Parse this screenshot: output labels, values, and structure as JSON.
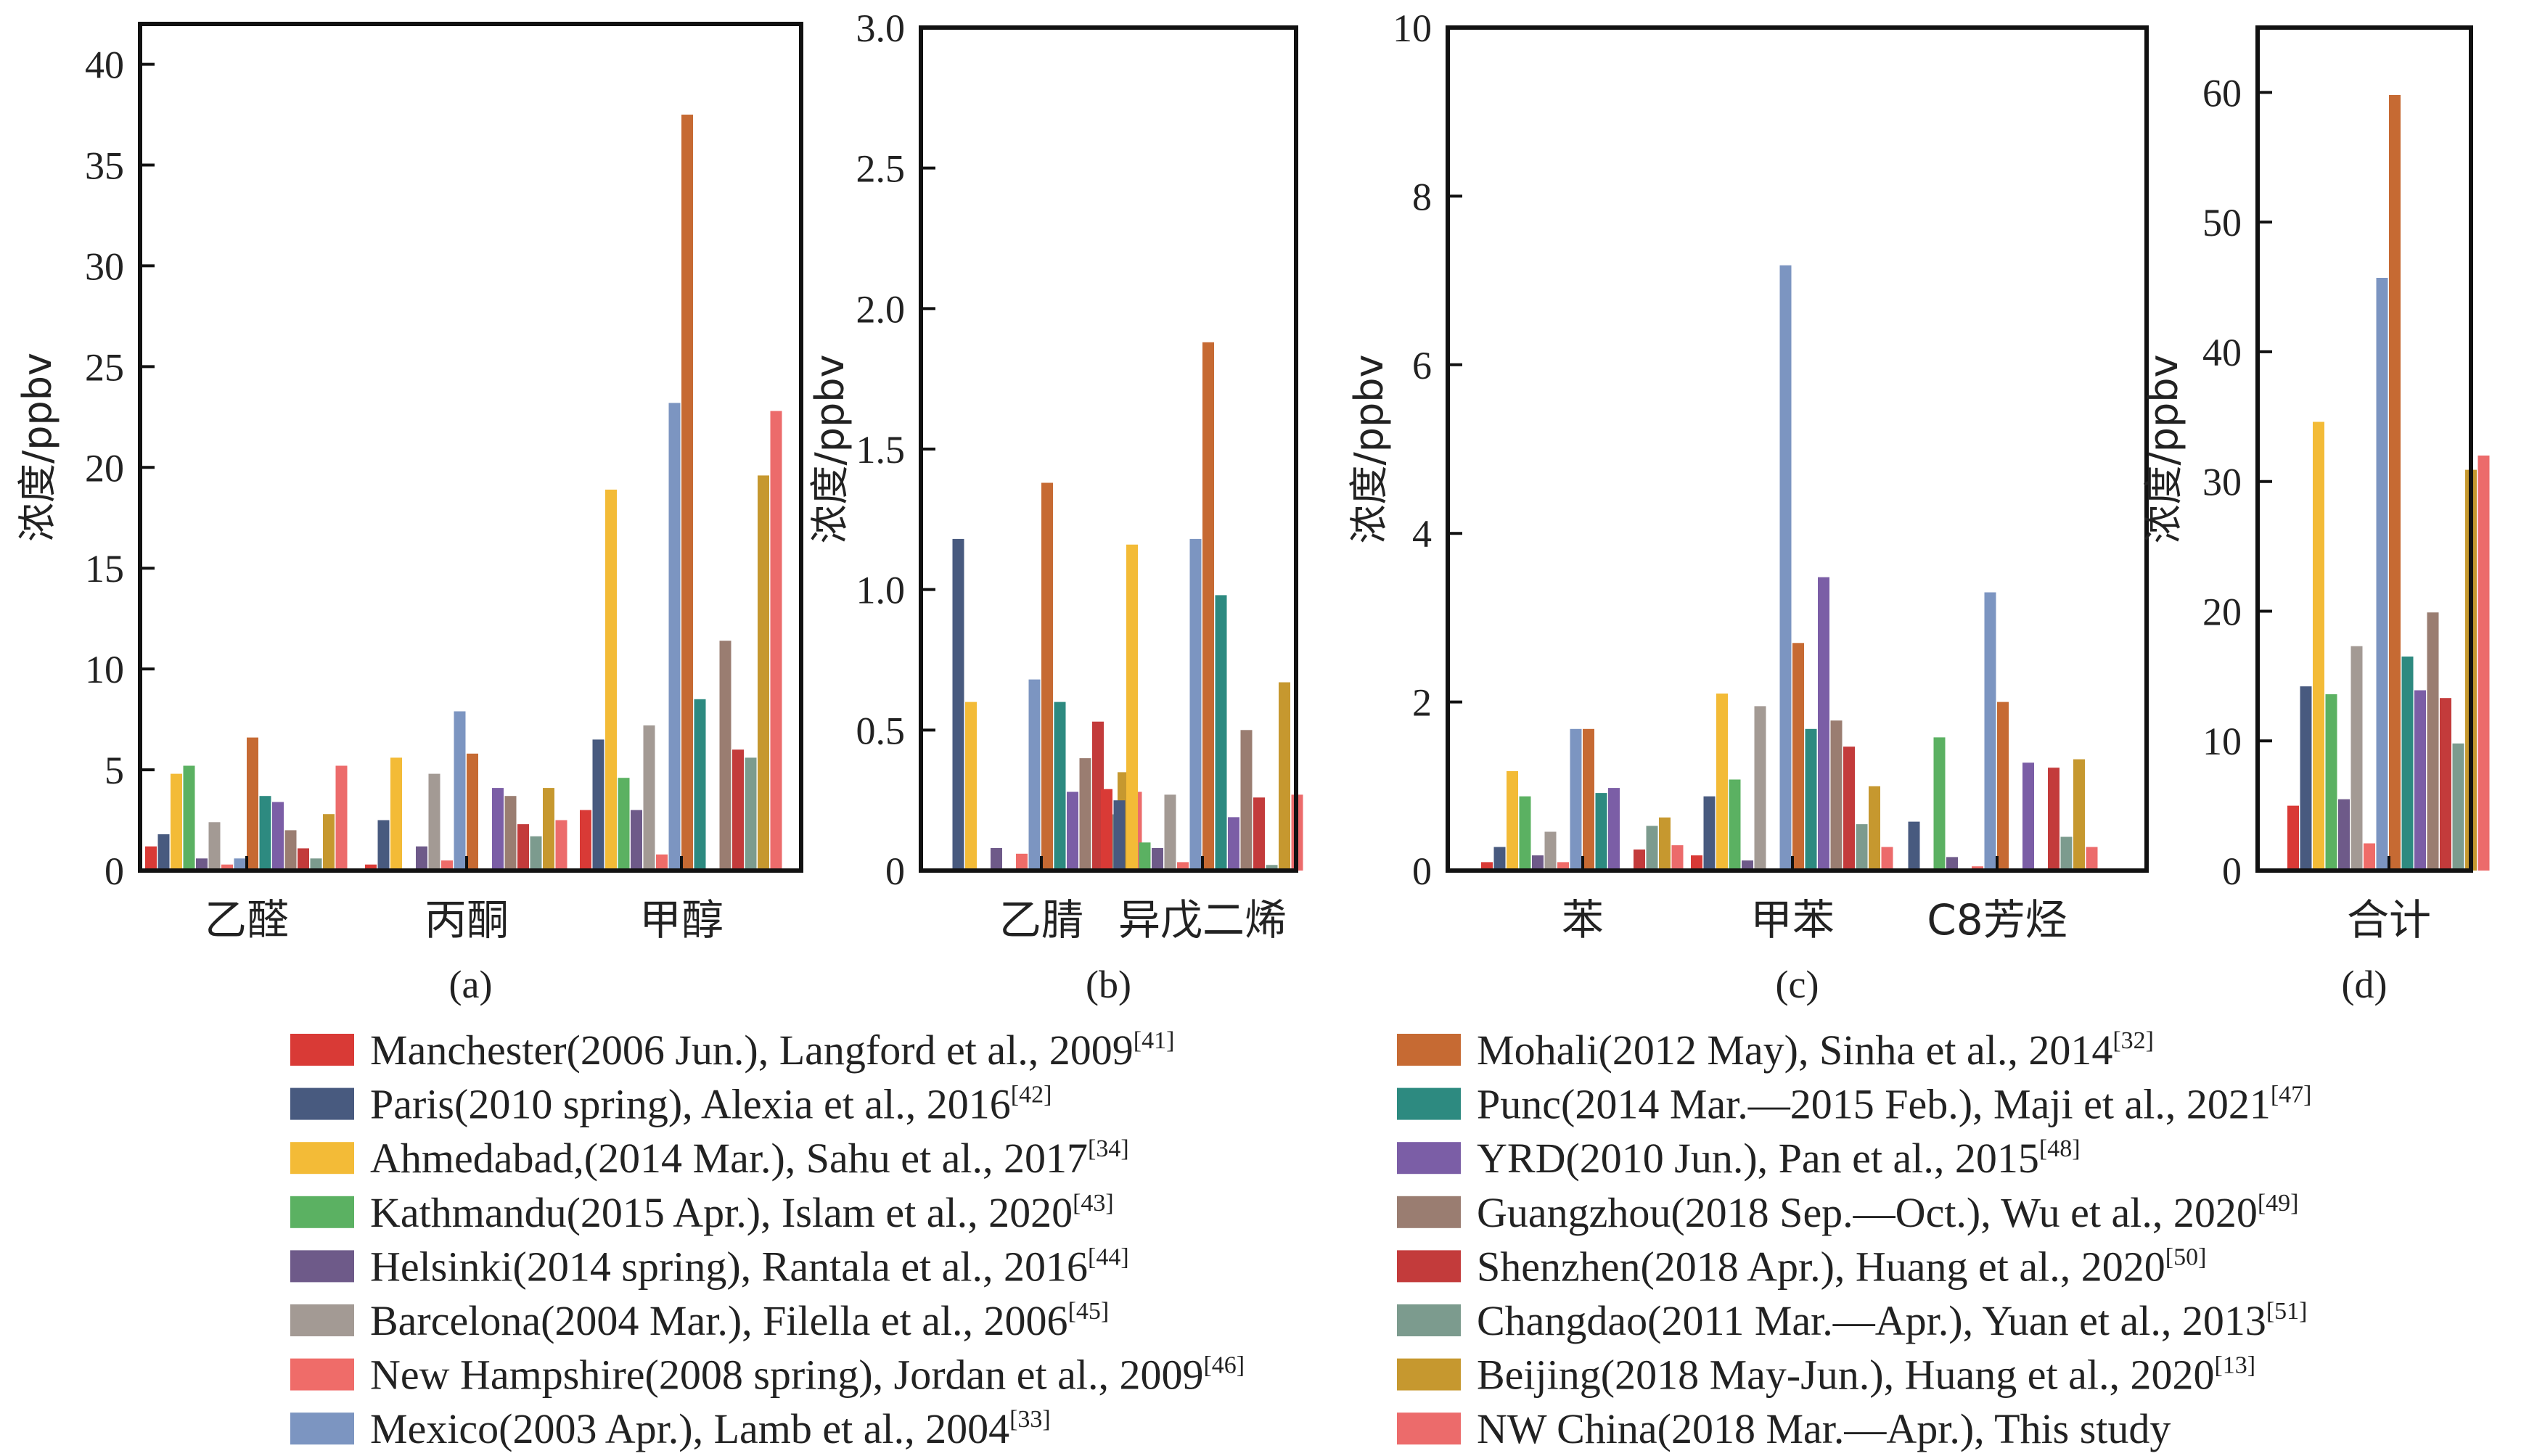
{
  "chart_data": {
    "series": [
      {
        "name": "Manchester(2006 Jun.), Langford et al., 2009",
        "ref": "[41]",
        "color": "#d93a36"
      },
      {
        "name": "Paris(2010 spring), Alexia et al., 2016",
        "ref": "[42]",
        "color": "#485a7f"
      },
      {
        "name": "Ahmedabad,(2014 Mar.), Sahu et al., 2017",
        "ref": "[34]",
        "color": "#f3bb37"
      },
      {
        "name": "Kathmandu(2015 Apr.), Islam et al., 2020",
        "ref": "[43]",
        "color": "#5bb162"
      },
      {
        "name": "Helsinki(2014 spring), Rantala et al., 2016",
        "ref": "[44]",
        "color": "#6e5a89"
      },
      {
        "name": "Barcelona(2004 Mar.), Filella et al., 2006",
        "ref": "[45]",
        "color": "#a39a94"
      },
      {
        "name": "New Hampshire(2008 spring), Jordan et al., 2009",
        "ref": "[46]",
        "color": "#ef6c69"
      },
      {
        "name": "Mexico(2003 Apr.), Lamb et al., 2004",
        "ref": "[33]",
        "color": "#7c95c1"
      },
      {
        "name": "Mohali(2012 May), Sinha et al., 2014",
        "ref": "[32]",
        "color": "#c66a33"
      },
      {
        "name": "Punc(2014 Mar.—2015 Feb.), Maji et al., 2021",
        "ref": "[47]",
        "color": "#2d8a80"
      },
      {
        "name": "YRD(2010 Jun.), Pan et al., 2015",
        "ref": "[48]",
        "color": "#7b5ea6"
      },
      {
        "name": "Guangzhou(2018 Sep.—Oct.), Wu et al., 2020",
        "ref": "[49]",
        "color": "#9a7d71"
      },
      {
        "name": "Shenzhen(2018 Apr.), Huang et al., 2020",
        "ref": "[50]",
        "color": "#c33b3b"
      },
      {
        "name": "Changdao(2011 Mar.—Apr.), Yuan et al., 2013",
        "ref": "[51]",
        "color": "#7c9b8e"
      },
      {
        "name": "Beijing(2018 May-Jun.), Huang et al., 2020",
        "ref": "[13]",
        "color": "#c6982f"
      },
      {
        "name": "NW China(2018 Mar.—Apr.), This study",
        "ref": "",
        "color": "#ec6b6b"
      }
    ],
    "panels": [
      {
        "type": "bar",
        "label": "(a)",
        "ylabel": "浓度/ppbv",
        "ylim": [
          0,
          42
        ],
        "yticks": [
          0,
          5,
          10,
          15,
          20,
          25,
          30,
          35,
          40
        ],
        "categories": [
          "乙醛",
          "丙酮",
          "甲醇"
        ],
        "values": [
          [
            1.2,
            1.8,
            4.8,
            5.2,
            0.6,
            2.4,
            0.3,
            0.6,
            6.6,
            3.7,
            3.4,
            2.0,
            1.1,
            0.6,
            2.8,
            5.2
          ],
          [
            0.3,
            2.5,
            5.6,
            0.1,
            1.2,
            4.8,
            0.5,
            7.9,
            5.8,
            0.1,
            4.1,
            3.7,
            2.3,
            1.7,
            4.1,
            2.5
          ],
          [
            3.0,
            6.5,
            18.9,
            4.6,
            3.0,
            7.2,
            0.8,
            23.2,
            37.5,
            8.5,
            0.0,
            11.4,
            6.0,
            5.6,
            19.6,
            22.8
          ]
        ]
      },
      {
        "type": "bar",
        "label": "(b)",
        "ylabel": "浓度/ppbv",
        "ylim": [
          0,
          3.0
        ],
        "yticks": [
          "0",
          "0.5",
          "1.0",
          "1.5",
          "2.0",
          "2.5",
          "3.0"
        ],
        "categories": [
          "乙腈",
          "异戊二烯"
        ],
        "values": [
          [
            0.0,
            1.18,
            0.6,
            0.0,
            0.08,
            0.0,
            0.06,
            0.68,
            1.38,
            0.6,
            0.28,
            0.4,
            0.53,
            0.2,
            0.35,
            0.28
          ],
          [
            0.29,
            0.25,
            1.16,
            0.1,
            0.08,
            0.27,
            0.03,
            1.18,
            1.88,
            0.98,
            0.19,
            0.5,
            0.26,
            0.02,
            0.67,
            0.27
          ]
        ]
      },
      {
        "type": "bar",
        "label": "(c)",
        "ylabel": "浓度/ppbv",
        "ylim": [
          0,
          10
        ],
        "yticks": [
          0,
          2,
          4,
          6,
          8,
          10
        ],
        "categories": [
          "苯",
          "甲苯",
          "C8芳烃"
        ],
        "values": [
          [
            0.1,
            0.28,
            1.18,
            0.88,
            0.18,
            0.46,
            0.1,
            1.68,
            1.68,
            0.92,
            0.98,
            0.0,
            0.25,
            0.53,
            0.63,
            0.3
          ],
          [
            0.18,
            0.88,
            2.1,
            1.08,
            0.12,
            1.95,
            0.0,
            7.18,
            2.7,
            1.68,
            3.48,
            1.78,
            1.47,
            0.55,
            1.0,
            0.28
          ],
          [
            0.0,
            0.58,
            0.0,
            1.58,
            0.16,
            0.0,
            0.05,
            3.3,
            2.0,
            0.0,
            1.28,
            0.0,
            1.22,
            0.4,
            1.32,
            0.28
          ]
        ]
      },
      {
        "type": "bar",
        "label": "(d)",
        "ylabel": "浓度/ppbv",
        "ylim": [
          0,
          65
        ],
        "yticks": [
          0,
          10,
          20,
          30,
          40,
          50,
          60
        ],
        "categories": [
          "合计"
        ],
        "values": [
          [
            5.0,
            14.2,
            34.6,
            13.6,
            5.5,
            17.3,
            2.1,
            45.7,
            59.8,
            16.5,
            13.9,
            19.9,
            13.3,
            9.8,
            30.9,
            32.0
          ]
        ]
      }
    ]
  }
}
